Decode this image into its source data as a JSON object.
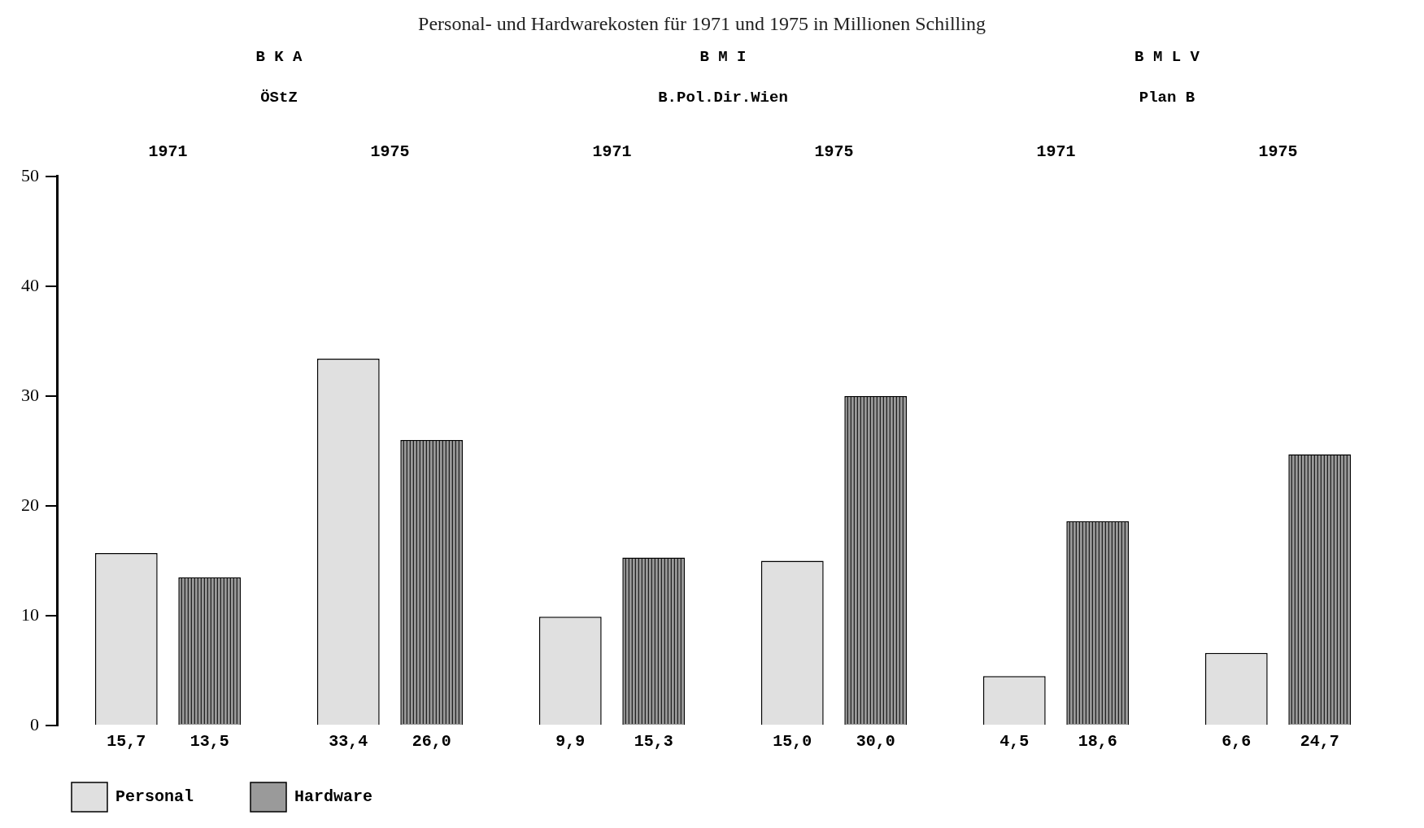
{
  "chart_data": {
    "type": "bar",
    "title": "Personal- und Hardwarekosten für 1971 und 1975 in Millionen Schilling",
    "categories": [
      "1971",
      "1975",
      "1971",
      "1975",
      "1971",
      "1975"
    ],
    "series": [
      {
        "name": "Personal",
        "color": "#e0e0e0",
        "values": [
          15.7,
          33.4,
          9.9,
          15.0,
          4.5,
          6.6
        ],
        "value_labels": [
          "15,7",
          "33,4",
          "9,9",
          "15,0",
          "4,5",
          "6,6"
        ]
      },
      {
        "name": "Hardware",
        "color": "#9a9a9a",
        "values": [
          13.5,
          26.0,
          15.3,
          30.0,
          18.6,
          24.7
        ],
        "value_labels": [
          "13,5",
          "26,0",
          "15,3",
          "30,0",
          "18,6",
          "24,7"
        ]
      }
    ],
    "annotations": [
      "B K A",
      "ÖStZ",
      "B M I",
      "B.Pol.Dir.Wien",
      "B M L V",
      "Plan B"
    ],
    "ylim": [
      0,
      50
    ],
    "yticks": [
      0,
      10,
      20,
      30,
      40,
      50
    ],
    "grid": false,
    "legend": "bottom"
  }
}
